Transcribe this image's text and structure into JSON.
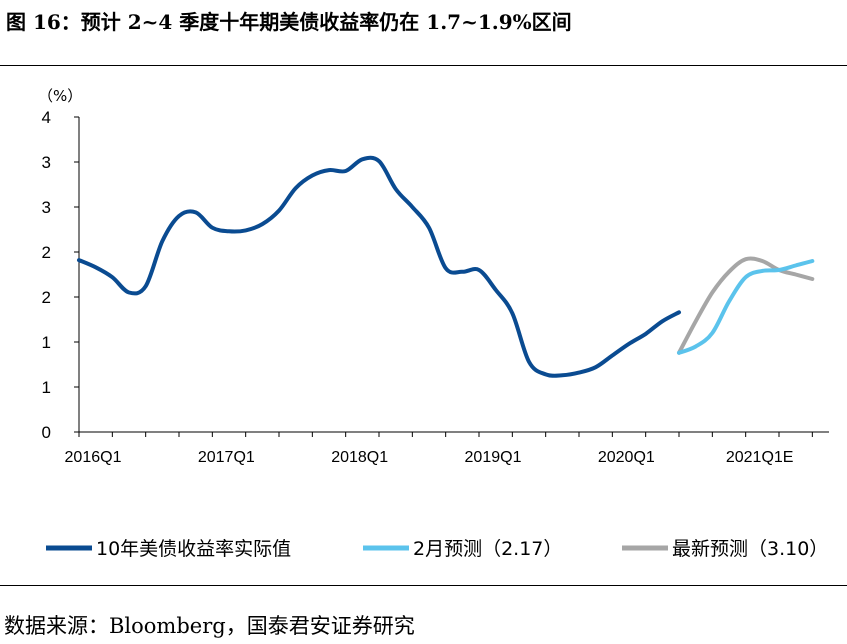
{
  "figure_title": "图 16：预计 2~4 季度十年期美债收益率仍在 1.7~1.9%区间",
  "source_note": "数据来源：Bloomberg，国泰君安证券研究",
  "chart_data": {
    "type": "line",
    "ylabel": "（%）",
    "y_tick_labels": [
      "0",
      "1",
      "1",
      "2",
      "2",
      "3",
      "3",
      "4"
    ],
    "ylim": [
      0,
      3.5
    ],
    "x_tick_labels": [
      "2016Q1",
      "2017Q1",
      "2018Q1",
      "2019Q1",
      "2020Q1",
      "2021Q1E"
    ],
    "xlim": [
      0,
      22.5
    ],
    "grid": false,
    "legend_position": "bottom",
    "series": [
      {
        "name": "10年美债收益率实际值",
        "color": "#0a4b91",
        "x": [
          0,
          0.5,
          1,
          1.5,
          2,
          2.5,
          3,
          3.5,
          4,
          4.5,
          5,
          5.5,
          6,
          6.5,
          7,
          7.5,
          8,
          8.5,
          9,
          9.5,
          10,
          10.5,
          11,
          11.5,
          12,
          12.5,
          13,
          13.5,
          14,
          14.5,
          15,
          15.5,
          16,
          16.5,
          17,
          17.5,
          18
        ],
        "y": [
          1.91,
          1.83,
          1.72,
          1.55,
          1.62,
          2.12,
          2.4,
          2.44,
          2.27,
          2.23,
          2.24,
          2.31,
          2.46,
          2.71,
          2.85,
          2.91,
          2.9,
          3.03,
          3.01,
          2.7,
          2.5,
          2.27,
          1.82,
          1.78,
          1.8,
          1.58,
          1.32,
          0.78,
          0.64,
          0.63,
          0.66,
          0.72,
          0.85,
          0.98,
          1.09,
          1.23,
          1.33
        ],
        "x_note": "quarters since 2016Q1"
      },
      {
        "name": "2月预测（2.17）",
        "color": "#5bc3ec",
        "x": [
          18,
          18.5,
          19,
          19.5,
          20,
          20.5,
          21,
          21.5,
          22
        ],
        "y": [
          0.88,
          0.95,
          1.1,
          1.45,
          1.72,
          1.79,
          1.8,
          1.85,
          1.9
        ]
      },
      {
        "name": "最新预测（3.10）",
        "color": "#a6a6a6",
        "x": [
          18,
          18.5,
          19,
          19.5,
          20,
          20.5,
          21,
          21.5,
          22
        ],
        "y": [
          0.88,
          1.23,
          1.55,
          1.78,
          1.92,
          1.9,
          1.8,
          1.75,
          1.7
        ]
      }
    ]
  }
}
